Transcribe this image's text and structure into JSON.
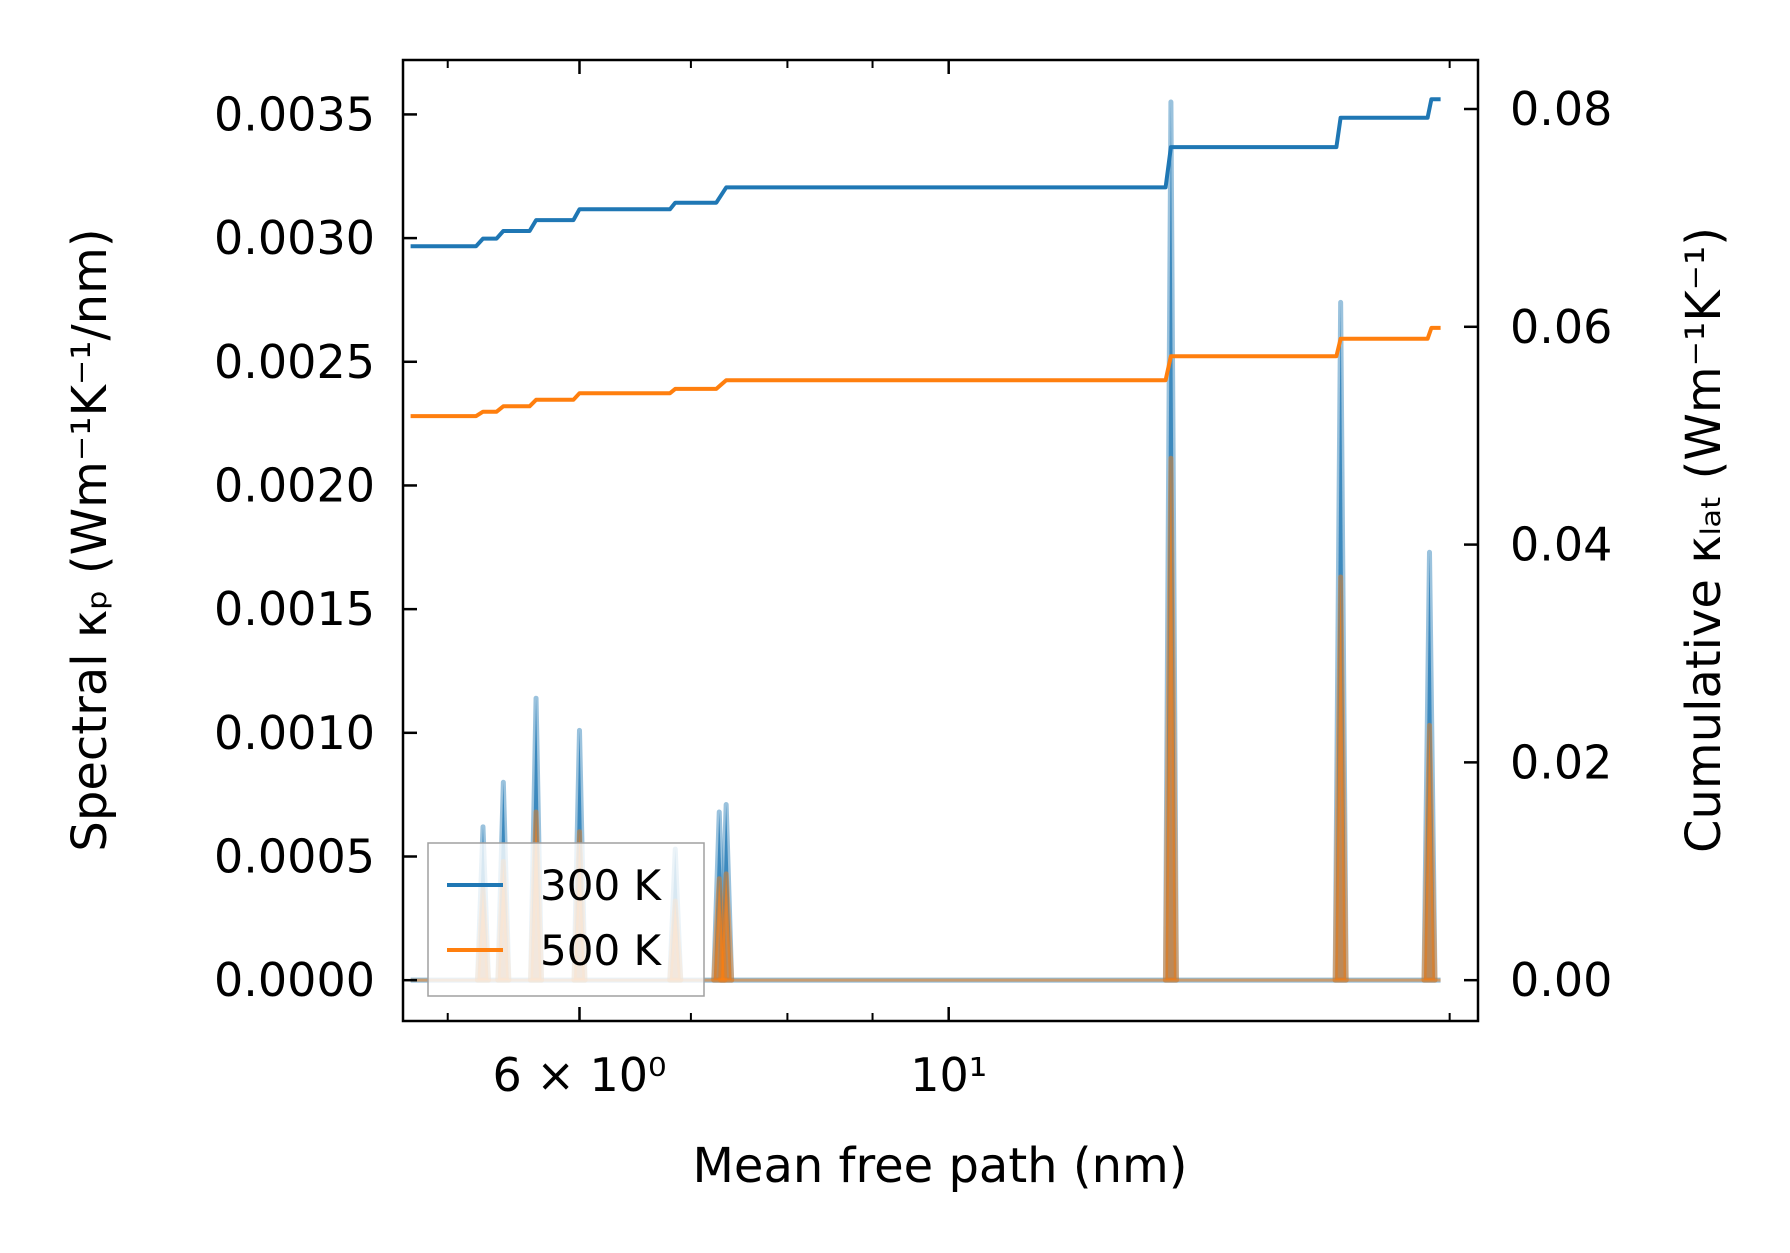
{
  "chart_data": {
    "type": "line",
    "xscale": "log",
    "xlim": [
      4.7,
      20.8
    ],
    "xlabel": "Mean free path (nm)",
    "x_tick_labels": [
      {
        "value": 6,
        "label": "6 × 10⁰"
      },
      {
        "value": 10,
        "label": "10¹"
      }
    ],
    "x_minor_ticks": [
      5,
      7,
      8,
      9,
      20
    ],
    "left_axis": {
      "label": "Spectral κₚ (Wm⁻¹K⁻¹/nm)",
      "ylim": [
        -0.000165,
        0.00372
      ],
      "ticks": [
        0.0,
        0.0005,
        0.001,
        0.0015,
        0.002,
        0.0025,
        0.003,
        0.0035
      ],
      "tick_labels": [
        "0.0000",
        "0.0005",
        "0.0010",
        "0.0015",
        "0.0020",
        "0.0025",
        "0.0030",
        "0.0035"
      ]
    },
    "right_axis": {
      "label": "Cumulative κₗₐₜ (Wm⁻¹K⁻¹)",
      "ylim": [
        -0.00375,
        0.0845
      ],
      "ticks": [
        0.0,
        0.02,
        0.04,
        0.06,
        0.08
      ],
      "tick_labels": [
        "0.00",
        "0.02",
        "0.04",
        "0.06",
        "0.08"
      ]
    },
    "spectral_series": [
      {
        "name": "300 K",
        "color": "#1f77b4",
        "peaks": [
          {
            "x": 5.25,
            "y": 0.00062
          },
          {
            "x": 5.4,
            "y": 0.0008
          },
          {
            "x": 5.65,
            "y": 0.00114
          },
          {
            "x": 6.0,
            "y": 0.00101
          },
          {
            "x": 6.85,
            "y": 0.00053
          },
          {
            "x": 7.28,
            "y": 0.00068
          },
          {
            "x": 7.35,
            "y": 0.00071
          },
          {
            "x": 13.6,
            "y": 0.00355
          },
          {
            "x": 17.2,
            "y": 0.00274
          },
          {
            "x": 19.45,
            "y": 0.00173
          }
        ]
      },
      {
        "name": "500 K",
        "color": "#ff7f0e",
        "peaks": [
          {
            "x": 5.25,
            "y": 0.00037
          },
          {
            "x": 5.4,
            "y": 0.00048
          },
          {
            "x": 5.65,
            "y": 0.00068
          },
          {
            "x": 6.0,
            "y": 0.0006
          },
          {
            "x": 6.85,
            "y": 0.00032
          },
          {
            "x": 7.28,
            "y": 0.00041
          },
          {
            "x": 7.35,
            "y": 0.00043
          },
          {
            "x": 13.6,
            "y": 0.00211
          },
          {
            "x": 17.2,
            "y": 0.00163
          },
          {
            "x": 19.45,
            "y": 0.00103
          }
        ]
      }
    ],
    "cumulative_series": [
      {
        "name": "300 K",
        "color": "#1f77b4",
        "x": [
          4.75,
          5.2,
          5.25,
          5.35,
          5.4,
          5.6,
          5.65,
          5.95,
          6.0,
          6.8,
          6.85,
          7.25,
          7.35,
          13.5,
          13.6,
          17.1,
          17.2,
          19.4,
          19.5,
          19.75
        ],
        "y": [
          0.0674,
          0.0674,
          0.0681,
          0.0681,
          0.0688,
          0.0688,
          0.0698,
          0.0698,
          0.0708,
          0.0708,
          0.0714,
          0.0714,
          0.0728,
          0.0728,
          0.0765,
          0.0765,
          0.0792,
          0.0792,
          0.0809,
          0.0809
        ]
      },
      {
        "name": "500 K",
        "color": "#ff7f0e",
        "x": [
          4.75,
          5.2,
          5.25,
          5.35,
          5.4,
          5.6,
          5.65,
          5.95,
          6.0,
          6.8,
          6.85,
          7.25,
          7.35,
          13.5,
          13.6,
          17.1,
          17.2,
          19.4,
          19.5,
          19.75
        ],
        "y": [
          0.0518,
          0.0518,
          0.0522,
          0.0522,
          0.0527,
          0.0527,
          0.0533,
          0.0533,
          0.0539,
          0.0539,
          0.0543,
          0.0543,
          0.0551,
          0.0551,
          0.0573,
          0.0573,
          0.0589,
          0.0589,
          0.0599,
          0.0599
        ]
      }
    ],
    "legend": {
      "position": "lower-left",
      "entries": [
        {
          "label": "300 K",
          "color": "#1f77b4"
        },
        {
          "label": "500 K",
          "color": "#ff7f0e"
        }
      ]
    }
  }
}
